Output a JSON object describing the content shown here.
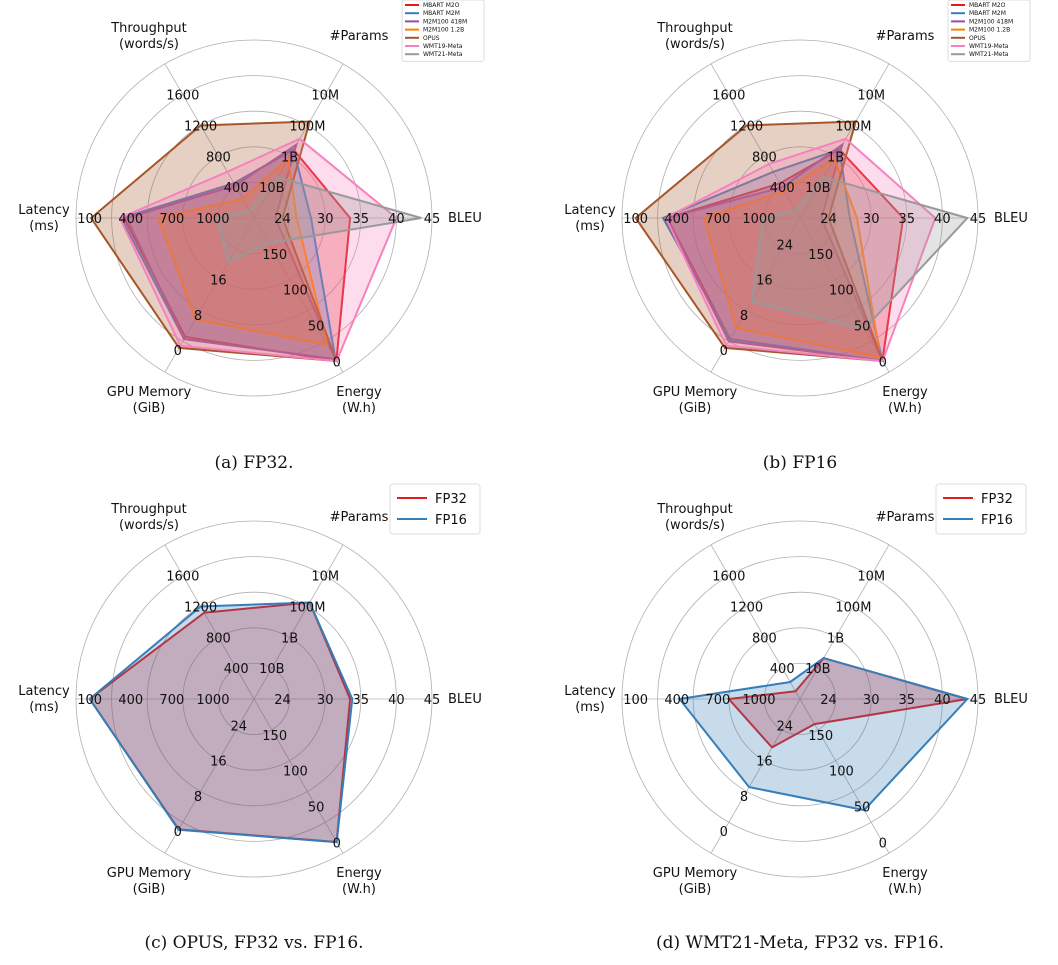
{
  "chart_data": [
    {
      "type": "radar",
      "caption": "(a) FP32.",
      "axes": [
        {
          "name": "BLEU",
          "label": "BLEU",
          "ticks": [
            "24",
            "30",
            "35",
            "40",
            "45"
          ],
          "range": [
            20,
            45
          ]
        },
        {
          "name": "Params",
          "label": "#Params",
          "ticks": [
            "10B",
            "1B",
            "100M",
            "10M"
          ],
          "range": [
            100000000000,
            1000000
          ]
        },
        {
          "name": "Throughput",
          "label": "Throughput\n(words/s)",
          "ticks": [
            "400",
            "800",
            "1200",
            "1600"
          ],
          "range": [
            0,
            2000
          ]
        },
        {
          "name": "Latency",
          "label": "Latency\n(ms)",
          "ticks": [
            "1000",
            "700",
            "400",
            "100"
          ],
          "range": [
            1300,
            0
          ]
        },
        {
          "name": "GPU Memory",
          "label": "GPU Memory\n(GiB)",
          "ticks": [
            "16",
            "8",
            "0"
          ],
          "range": [
            30,
            -5
          ]
        },
        {
          "name": "Energy",
          "label": "Energy\n(W.h)",
          "ticks": [
            "150",
            "100",
            "50",
            "0"
          ],
          "range": [
            200,
            -15
          ]
        }
      ],
      "legend": {
        "position": "top-right",
        "size": "small"
      },
      "series": [
        {
          "name": "MBART M2O",
          "color": "#e41a1c",
          "values": [
            33.5,
            600000000,
            450,
            350,
            3,
            1
          ]
        },
        {
          "name": "MBART M2M",
          "color": "#377eb8",
          "values": [
            28,
            600000000,
            450,
            330,
            2.5,
            3
          ]
        },
        {
          "name": "M2M100 418M",
          "color": "#984ea3",
          "values": [
            23,
            418000000,
            420,
            370,
            2.5,
            3
          ]
        },
        {
          "name": "M2M100 1.2B",
          "color": "#ff7f00",
          "values": [
            26,
            1200000000,
            250,
            600,
            7,
            23
          ]
        },
        {
          "name": "OPUS",
          "color": "#a65628",
          "values": [
            24,
            74000000,
            1200,
            110,
            0.5,
            0.5
          ]
        },
        {
          "name": "WMT19-Meta",
          "color": "#f781bf",
          "values": [
            40,
            270000000,
            600,
            320,
            1,
            0.5
          ]
        },
        {
          "name": "WMT21-Meta",
          "color": "#999999",
          "values": [
            43.5,
            4700000000,
            100,
            1030,
            20,
            165
          ]
        }
      ]
    },
    {
      "type": "radar",
      "caption": "(b) FP16",
      "axes": [
        {
          "name": "BLEU",
          "label": "BLEU",
          "ticks": [
            "24",
            "30",
            "35",
            "40",
            "45"
          ],
          "range": [
            20,
            45
          ]
        },
        {
          "name": "Params",
          "label": "#Params",
          "ticks": [
            "10B",
            "1B",
            "100M",
            "10M"
          ],
          "range": [
            100000000000,
            1000000
          ]
        },
        {
          "name": "Throughput",
          "label": "Throughput\n(words/s)",
          "ticks": [
            "400",
            "800",
            "1200",
            "1600"
          ],
          "range": [
            0,
            2000
          ]
        },
        {
          "name": "Latency",
          "label": "Latency\n(ms)",
          "ticks": [
            "1000",
            "700",
            "400",
            "100"
          ],
          "range": [
            1300,
            0
          ]
        },
        {
          "name": "GPU Memory",
          "label": "GPU Memory\n(GiB)",
          "ticks": [
            "24",
            "16",
            "8",
            "0"
          ],
          "range": [
            30,
            -5
          ]
        },
        {
          "name": "Energy",
          "label": "Energy\n(W.h)",
          "ticks": [
            "150",
            "100",
            "50",
            "0"
          ],
          "range": [
            200,
            -15
          ]
        }
      ],
      "legend": {
        "position": "top-right",
        "size": "small"
      },
      "series": [
        {
          "name": "MBART M2O",
          "color": "#e41a1c",
          "values": [
            34.5,
            600000000,
            450,
            330,
            2.5,
            1
          ]
        },
        {
          "name": "MBART M2M",
          "color": "#377eb8",
          "values": [
            27,
            600000000,
            600,
            300,
            2.5,
            1
          ]
        },
        {
          "name": "M2M100 418M",
          "color": "#984ea3",
          "values": [
            23,
            418000000,
            400,
            330,
            2,
            1
          ]
        },
        {
          "name": "M2M100 1.2B",
          "color": "#ff7f00",
          "values": [
            28,
            1200000000,
            350,
            600,
            5,
            6
          ]
        },
        {
          "name": "OPUS",
          "color": "#a65628",
          "values": [
            24,
            74000000,
            1200,
            100,
            0.5,
            0.5
          ]
        },
        {
          "name": "WMT19-Meta",
          "color": "#f781bf",
          "values": [
            39,
            270000000,
            700,
            320,
            1,
            0.5
          ]
        },
        {
          "name": "WMT21-Meta",
          "color": "#999999",
          "values": [
            43.5,
            4700000000,
            100,
            1030,
            11,
            45
          ]
        }
      ]
    },
    {
      "type": "radar",
      "caption": "(c) OPUS, FP32 vs. FP16.",
      "axes": [
        {
          "name": "BLEU",
          "label": "BLEU",
          "ticks": [
            "24",
            "30",
            "35",
            "40",
            "45"
          ],
          "range": [
            20,
            45
          ]
        },
        {
          "name": "Params",
          "label": "#Params",
          "ticks": [
            "10B",
            "1B",
            "100M",
            "10M"
          ],
          "range": [
            100000000000,
            1000000
          ]
        },
        {
          "name": "Throughput",
          "label": "Throughput\n(words/s)",
          "ticks": [
            "400",
            "800",
            "1200",
            "1600"
          ],
          "range": [
            0,
            2000
          ]
        },
        {
          "name": "Latency",
          "label": "Latency\n(ms)",
          "ticks": [
            "1000",
            "700",
            "400",
            "100"
          ],
          "range": [
            1300,
            0
          ]
        },
        {
          "name": "GPU Memory",
          "label": "GPU Memory\n(GiB)",
          "ticks": [
            "24",
            "16",
            "8",
            "0"
          ],
          "range": [
            30,
            -5
          ]
        },
        {
          "name": "Energy",
          "label": "Energy\n(W.h)",
          "ticks": [
            "150",
            "100",
            "50",
            "0"
          ],
          "range": [
            200,
            -15
          ]
        }
      ],
      "legend": {
        "position": "top-right",
        "size": "large"
      },
      "series": [
        {
          "name": "FP32",
          "color": "#e41a1c",
          "values": [
            33.5,
            74000000,
            1120,
            100,
            0.4,
            0.5
          ]
        },
        {
          "name": "FP16",
          "color": "#377eb8",
          "values": [
            33.8,
            74000000,
            1200,
            100,
            0.3,
            0.3
          ]
        }
      ]
    },
    {
      "type": "radar",
      "caption": "(d) WMT21-Meta, FP32 vs. FP16.",
      "axes": [
        {
          "name": "BLEU",
          "label": "BLEU",
          "ticks": [
            "24",
            "30",
            "35",
            "40",
            "45"
          ],
          "range": [
            20,
            45
          ]
        },
        {
          "name": "Params",
          "label": "#Params",
          "ticks": [
            "10B",
            "1B",
            "100M",
            "10M"
          ],
          "range": [
            100000000000,
            1000000
          ]
        },
        {
          "name": "Throughput",
          "label": "Throughput\n(words/s)",
          "ticks": [
            "400",
            "800",
            "1200",
            "1600"
          ],
          "range": [
            0,
            2000
          ]
        },
        {
          "name": "Latency",
          "label": "Latency\n(ms)",
          "ticks": [
            "1000",
            "700",
            "400",
            "100"
          ],
          "range": [
            1300,
            0
          ]
        },
        {
          "name": "GPU Memory",
          "label": "GPU Memory\n(GiB)",
          "ticks": [
            "24",
            "16",
            "8",
            "0"
          ],
          "range": [
            30,
            -5
          ]
        },
        {
          "name": "Energy",
          "label": "Energy\n(W.h)",
          "ticks": [
            "150",
            "100",
            "50",
            "0"
          ],
          "range": [
            200,
            -15
          ]
        }
      ],
      "legend": {
        "position": "top-right",
        "size": "large"
      },
      "series": [
        {
          "name": "FP32",
          "color": "#e41a1c",
          "values": [
            43.5,
            4700000000,
            100,
            780,
            19,
            165
          ]
        },
        {
          "name": "FP16",
          "color": "#377eb8",
          "values": [
            43.5,
            4700000000,
            220,
            420,
            10,
            45
          ]
        }
      ]
    }
  ]
}
